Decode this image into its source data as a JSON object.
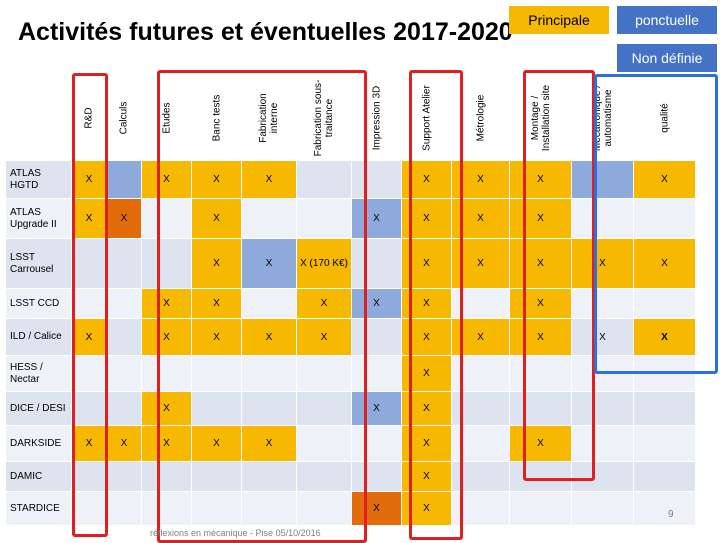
{
  "title": "Activités futures et éventuelles 2017-2020",
  "legend": {
    "principal": "Principale",
    "ponctuelle": "ponctuelle",
    "non_definie": "Non définie"
  },
  "columns": [
    "R&D",
    "Calculs",
    "Etudes",
    "Banc tests",
    "Fabrication interne",
    "Fabrication sous-traitance",
    "Impression 3D",
    "Support Atelier",
    "Métrologie",
    "Montage / Installation site",
    "Mécatronique / automatisme",
    "qualité"
  ],
  "rows": [
    {
      "label": "ATLAS HGTD",
      "cells": [
        "X",
        "",
        "X",
        "X",
        "X",
        "",
        "",
        "X",
        "X",
        "X",
        "",
        "X"
      ]
    },
    {
      "label": "ATLAS Upgrade II",
      "cells": [
        "X",
        "X",
        "",
        "X",
        "",
        "",
        "X",
        "X",
        "X",
        "X",
        "",
        ""
      ]
    },
    {
      "label": "LSST Carrousel",
      "cells": [
        "",
        "",
        "",
        "X",
        "X",
        "X (170 K€)",
        "",
        "X",
        "X",
        "X",
        "X",
        "X"
      ]
    },
    {
      "label": "LSST CCD",
      "cells": [
        "",
        "",
        "X",
        "X",
        "",
        "X",
        "X",
        "X",
        "",
        "X",
        "",
        ""
      ]
    },
    {
      "label": "ILD / Calice",
      "cells": [
        "X",
        "",
        "X",
        "X",
        "X",
        "X",
        "",
        "X",
        "X",
        "X",
        "X",
        "X"
      ]
    },
    {
      "label": "HESS / Nectar",
      "cells": [
        "",
        "",
        "",
        "",
        "",
        "",
        "",
        "X",
        "",
        "",
        "",
        ""
      ]
    },
    {
      "label": "DICE / DESI",
      "cells": [
        "",
        "",
        "X",
        "",
        "",
        "",
        "X",
        "X",
        "",
        "",
        "",
        ""
      ]
    },
    {
      "label": "DARKSIDE",
      "cells": [
        "X",
        "X",
        "X",
        "X",
        "X",
        "",
        "",
        "X",
        "",
        "X",
        "",
        ""
      ]
    },
    {
      "label": "DAMIC",
      "cells": [
        "",
        "",
        "",
        "",
        "",
        "",
        "",
        "X",
        "",
        "",
        "",
        ""
      ]
    },
    {
      "label": "STARDICE",
      "cells": [
        "",
        "",
        "",
        "",
        "",
        "",
        "X",
        "X",
        "",
        "",
        "",
        ""
      ]
    }
  ],
  "footer": "réflexions en mécanique - Pise 05/10/2016",
  "page_number": "9",
  "colors": {
    "principal": "#f6b800",
    "ponctuelle": "#4472c4",
    "light_blue": "#8eaadb",
    "orange": "#e36c0a",
    "highlight_red": "#e02020",
    "highlight_blue": "#2e6fe0"
  }
}
